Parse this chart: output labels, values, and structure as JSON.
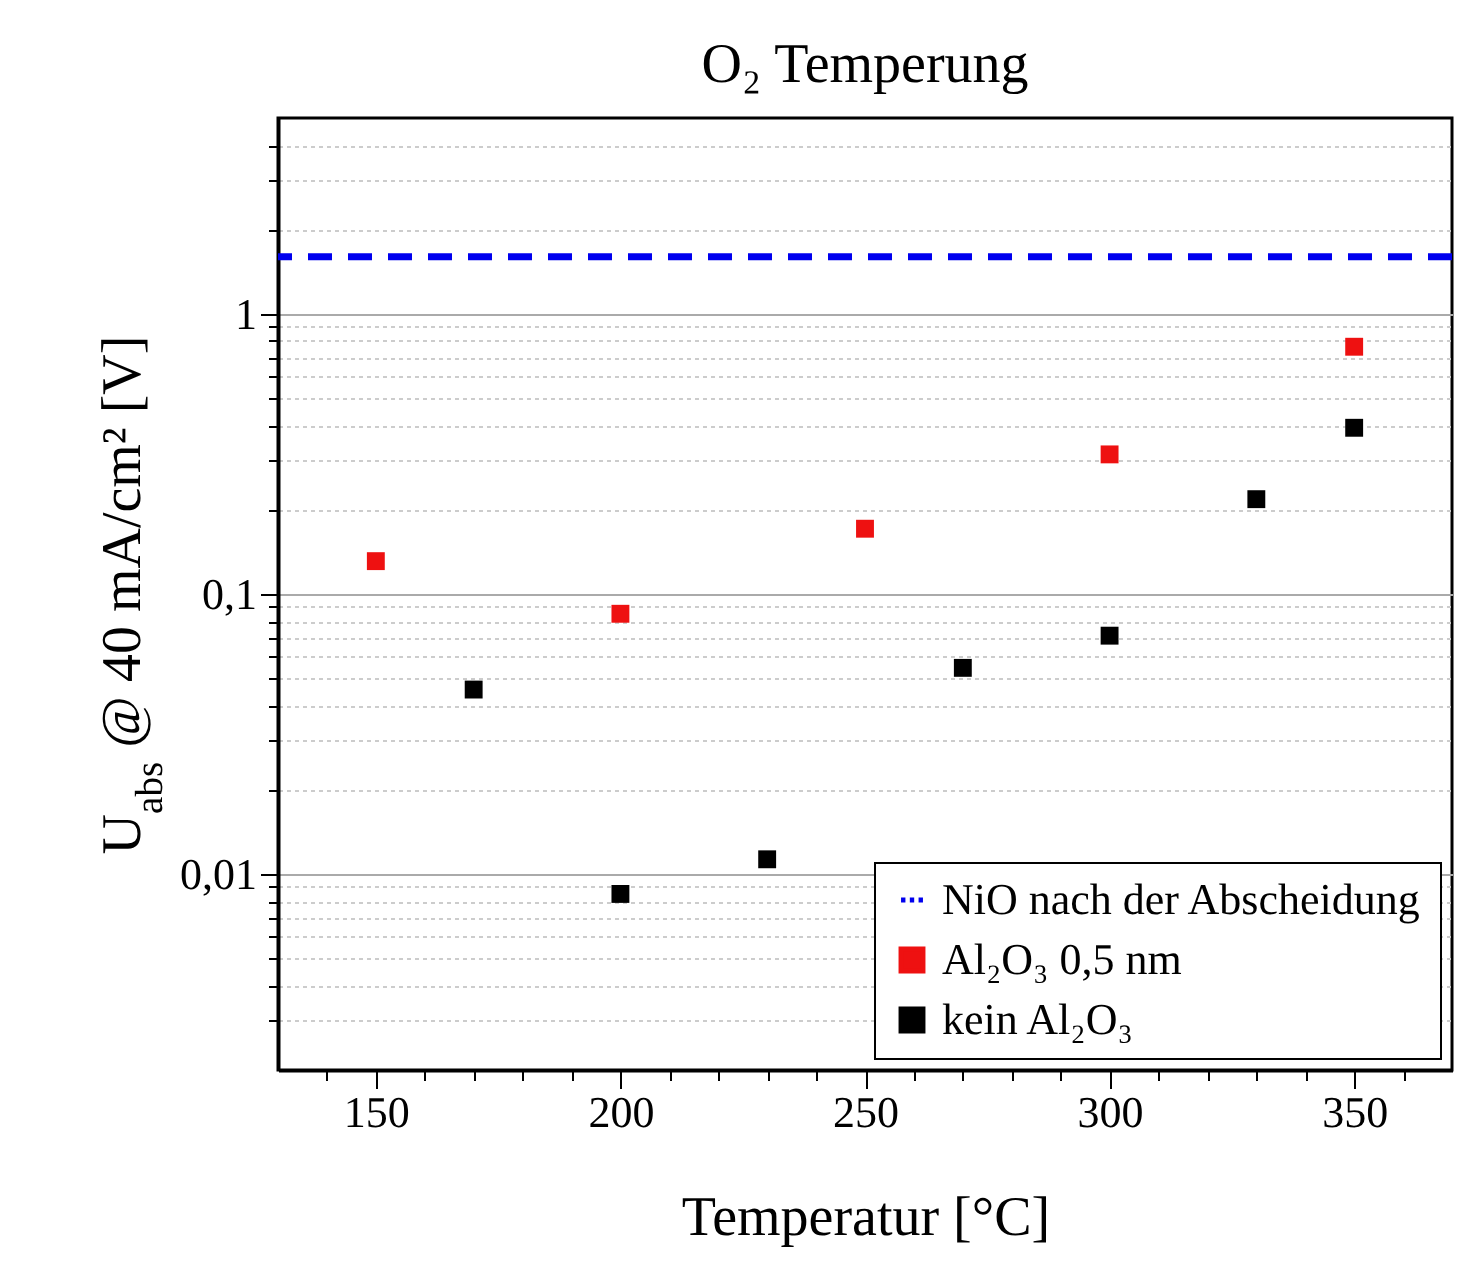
{
  "chart_data": {
    "type": "scatter",
    "title": "O₂ Temperung",
    "xlabel": "Temperatur [°C]",
    "ylabel": "U$_{abs}$ @ 40 mA/cm² [V]",
    "log": "y",
    "grid": "y",
    "legend": "bottom right",
    "marker": "square",
    "xlim": [
      130,
      370
    ],
    "xticks": [
      {
        "value": 140,
        "label": null
      },
      150,
      {
        "value": 160,
        "label": null
      },
      {
        "value": 170,
        "label": null
      },
      {
        "value": 180,
        "label": null
      },
      {
        "value": 190,
        "label": null
      },
      200,
      {
        "value": 210,
        "label": null
      },
      {
        "value": 220,
        "label": null
      },
      {
        "value": 230,
        "label": null
      },
      {
        "value": 240,
        "label": null
      },
      250,
      {
        "value": 260,
        "label": null
      },
      {
        "value": 270,
        "label": null
      },
      {
        "value": 280,
        "label": null
      },
      {
        "value": 290,
        "label": null
      },
      300,
      {
        "value": 310,
        "label": null
      },
      {
        "value": 320,
        "label": null
      },
      {
        "value": 330,
        "label": null
      },
      {
        "value": 340,
        "label": null
      },
      350,
      {
        "value": 360,
        "label": null
      }
    ],
    "ylim": [
      0.002,
      5
    ],
    "yticks": [
      {
        "value": 0.003,
        "label": null
      },
      {
        "value": 0.004,
        "label": null
      },
      {
        "value": 0.005,
        "label": null
      },
      {
        "value": 0.006,
        "label": null
      },
      {
        "value": 0.007,
        "label": null
      },
      {
        "value": 0.008,
        "label": null
      },
      {
        "value": 0.009,
        "label": null
      },
      {
        "value": 0.01,
        "label": "0,01"
      },
      {
        "value": 0.02,
        "label": null
      },
      {
        "value": 0.03,
        "label": null
      },
      {
        "value": 0.04,
        "label": null
      },
      {
        "value": 0.05,
        "label": null
      },
      {
        "value": 0.06,
        "label": null
      },
      {
        "value": 0.07,
        "label": null
      },
      {
        "value": 0.08,
        "label": null
      },
      {
        "value": 0.09,
        "label": null
      },
      {
        "value": 0.1,
        "label": "0,1"
      },
      {
        "value": 0.2,
        "label": null
      },
      {
        "value": 0.3,
        "label": null
      },
      {
        "value": 0.4,
        "label": null
      },
      {
        "value": 0.5,
        "label": null
      },
      {
        "value": 0.6,
        "label": null
      },
      {
        "value": 0.7,
        "label": null
      },
      {
        "value": 0.8,
        "label": null
      },
      {
        "value": 0.9,
        "label": null
      },
      1,
      {
        "value": 2,
        "label": null
      },
      {
        "value": 3,
        "label": null
      },
      {
        "value": 4,
        "label": null
      }
    ],
    "ref_lines": [
      {
        "axis": "y",
        "value": 1.6,
        "label": "NiO nach der Abscheidung",
        "color": "#0000ee",
        "line_style": "dashed"
      }
    ],
    "series": [
      {
        "name": "Al₂O₃ 0,5 nm",
        "color": "#ee1111",
        "x": [
          150,
          200,
          250,
          300,
          350
        ],
        "values": [
          0.131,
          0.085,
          0.171,
          0.315,
          0.763
        ]
      },
      {
        "name": "kein Al₂O₃",
        "color": "#000000",
        "x": [
          170,
          200,
          230,
          270,
          300,
          330,
          350
        ],
        "values": [
          0.0456,
          0.0085,
          0.0113,
          0.0545,
          0.071,
          0.218,
          0.392
        ]
      }
    ]
  }
}
